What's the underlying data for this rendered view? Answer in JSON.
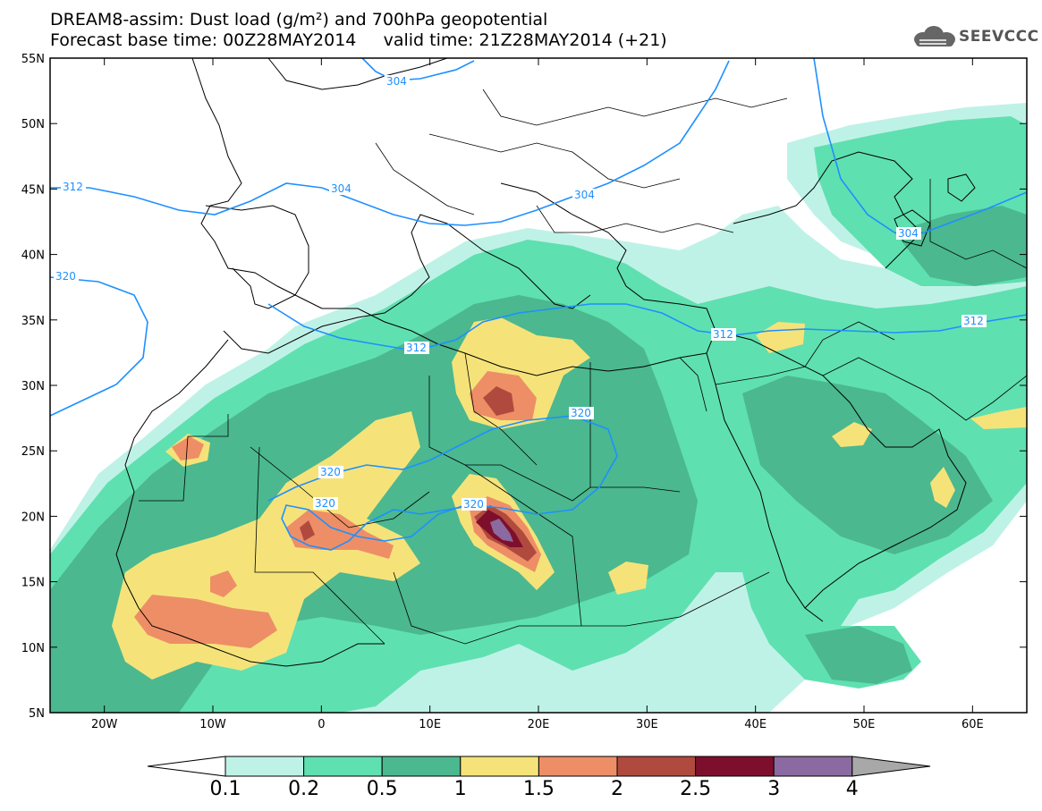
{
  "title": {
    "line1": "DREAM8-assim: Dust load (g/m²) and 700hPa geopotential",
    "line2": "Forecast base time: 00Z28MAY2014     valid time: 21Z28MAY2014 (+21)"
  },
  "logo": {
    "text": "SEEVCCC",
    "icon": "cloud-logo-icon"
  },
  "map": {
    "lat_labels": [
      "55N",
      "50N",
      "45N",
      "40N",
      "35N",
      "30N",
      "25N",
      "20N",
      "15N",
      "10N",
      "5N"
    ],
    "lon_labels": [
      "20W",
      "10W",
      "0",
      "10E",
      "20E",
      "30E",
      "40E",
      "50E",
      "60E"
    ],
    "lon_range": [
      -25,
      65
    ],
    "lat_range": [
      5,
      55
    ],
    "contour_labels": [
      "304",
      "304",
      "304",
      "304",
      "312",
      "320",
      "312",
      "312",
      "312",
      "320",
      "320",
      "320",
      "320"
    ]
  },
  "colorbar": {
    "ticks": [
      "0.1",
      "0.2",
      "0.5",
      "1",
      "1.5",
      "2",
      "2.5",
      "3",
      "4"
    ],
    "colors": [
      "#ffffff",
      "#bff2e6",
      "#5fe0b0",
      "#4bb88f",
      "#f5e37a",
      "#ee8e66",
      "#b04a3e",
      "#7e0f2c",
      "#8a6aa0",
      "#a8a8a8"
    ]
  }
}
